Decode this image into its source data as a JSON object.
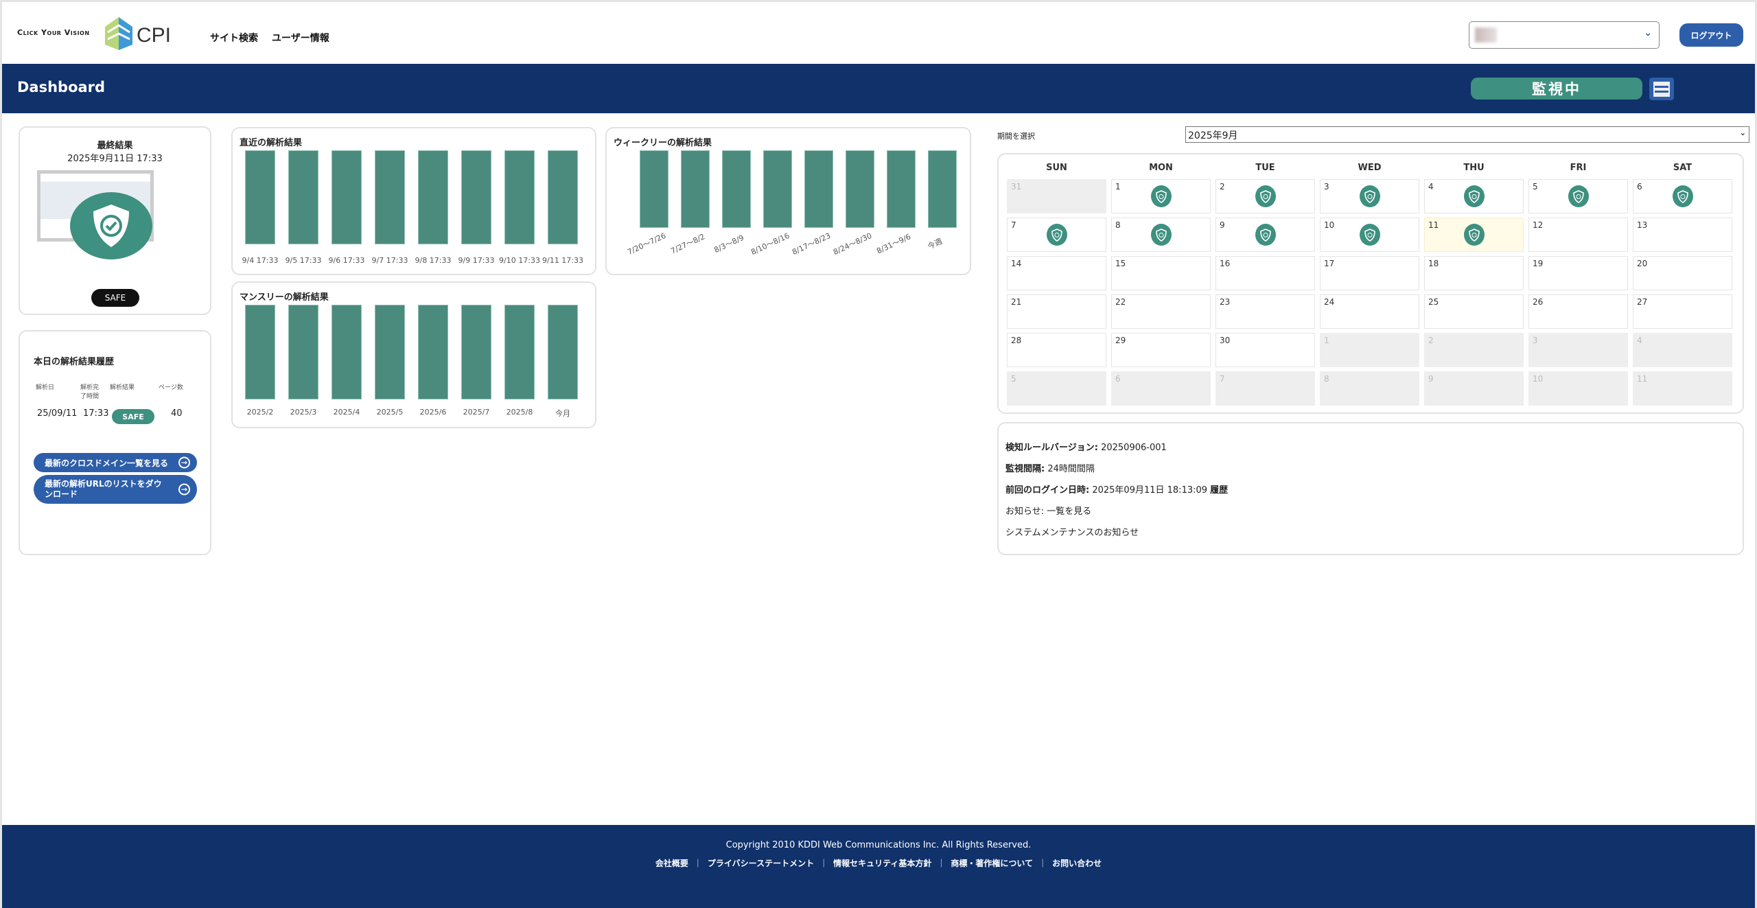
{
  "header": {
    "logo_tagline": "Click Your Vision",
    "logo_text": "CPI",
    "nav": [
      "サイト検索",
      "ユーザー情報"
    ],
    "site_select_value": "",
    "logout_label": "ログアウト"
  },
  "titlebar": {
    "title": "Dashboard",
    "monitor_status": "監視中",
    "menu_icon": "hamburger-icon"
  },
  "latest": {
    "title": "最終結果",
    "datetime": "2025年9月11日 17:33",
    "status": "SAFE",
    "icon": "shield-check-icon"
  },
  "history": {
    "title": "本日の解析結果履歴",
    "columns": [
      "解析日",
      "解析完了時間",
      "解析結果",
      "ページ数"
    ],
    "rows": [
      {
        "date": "25/09/11",
        "time": "17:33",
        "result": "SAFE",
        "pages": "40"
      }
    ],
    "buttons": [
      "最新のクロスドメイン一覧を見る",
      "最新の解析URLのリストをダウンロード"
    ]
  },
  "colors": {
    "navy": "#10316a",
    "accent_blue": "#2d5ea9",
    "safe_green": "#3e9080",
    "bar_green": "#4b8b7d"
  },
  "chart_data": [
    {
      "type": "bar",
      "title": "直近の解析結果",
      "categories": [
        "9/4 17:33",
        "9/5 17:33",
        "9/6 17:33",
        "9/7 17:33",
        "9/8 17:33",
        "9/9 17:33",
        "9/10 17:33",
        "9/11 17:33"
      ],
      "values": [
        1,
        1,
        1,
        1,
        1,
        1,
        1,
        1
      ],
      "ylim": [
        0,
        1
      ],
      "grid": false
    },
    {
      "type": "bar",
      "title": "ウィークリーの解析結果",
      "categories": [
        "7/20〜7/26",
        "7/27〜8/2",
        "8/3〜8/9",
        "8/10〜8/16",
        "8/17〜8/23",
        "8/24〜8/30",
        "8/31〜9/6",
        "今週"
      ],
      "values": [
        1,
        1,
        1,
        1,
        1,
        1,
        1,
        1
      ],
      "ylim": [
        0,
        1
      ],
      "grid": false
    },
    {
      "type": "bar",
      "title": "マンスリーの解析結果",
      "categories": [
        "2025/2",
        "2025/3",
        "2025/4",
        "2025/5",
        "2025/6",
        "2025/7",
        "2025/8",
        "今月"
      ],
      "values": [
        1,
        1,
        1,
        1,
        1,
        1,
        1,
        1
      ],
      "ylim": [
        0,
        1
      ],
      "grid": false
    }
  ],
  "calendar": {
    "period_label": "期間を選択",
    "period_value": "2025年9月",
    "days_of_week": [
      "SUN",
      "MON",
      "TUE",
      "WED",
      "THU",
      "FRI",
      "SAT"
    ],
    "weeks": [
      [
        [
          "31",
          0,
          0
        ],
        [
          "1",
          1,
          1
        ],
        [
          "2",
          1,
          1
        ],
        [
          "3",
          1,
          1
        ],
        [
          "4",
          1,
          1
        ],
        [
          "5",
          1,
          1
        ],
        [
          "6",
          1,
          1
        ]
      ],
      [
        [
          "7",
          1,
          1
        ],
        [
          "8",
          1,
          1
        ],
        [
          "9",
          1,
          1
        ],
        [
          "10",
          1,
          1
        ],
        [
          "11",
          1,
          1,
          "today"
        ],
        [
          "12",
          1,
          0
        ],
        [
          "13",
          1,
          0
        ]
      ],
      [
        [
          "14",
          1,
          0
        ],
        [
          "15",
          1,
          0
        ],
        [
          "16",
          1,
          0
        ],
        [
          "17",
          1,
          0
        ],
        [
          "18",
          1,
          0
        ],
        [
          "19",
          1,
          0
        ],
        [
          "20",
          1,
          0
        ]
      ],
      [
        [
          "21",
          1,
          0
        ],
        [
          "22",
          1,
          0
        ],
        [
          "23",
          1,
          0
        ],
        [
          "24",
          1,
          0
        ],
        [
          "25",
          1,
          0
        ],
        [
          "26",
          1,
          0
        ],
        [
          "27",
          1,
          0
        ]
      ],
      [
        [
          "28",
          1,
          0
        ],
        [
          "29",
          1,
          0
        ],
        [
          "30",
          1,
          0
        ],
        [
          "1",
          0,
          0
        ],
        [
          "2",
          0,
          0
        ],
        [
          "3",
          0,
          0
        ],
        [
          "4",
          0,
          0
        ]
      ],
      [
        [
          "5",
          0,
          0
        ],
        [
          "6",
          0,
          0
        ],
        [
          "7",
          0,
          0
        ],
        [
          "8",
          0,
          0
        ],
        [
          "9",
          0,
          0
        ],
        [
          "10",
          0,
          0
        ],
        [
          "11",
          0,
          0
        ]
      ]
    ]
  },
  "info": {
    "rule_label": "検知ルールバージョン:",
    "rule_value": "20250906-001",
    "interval_label": "監視間隔:",
    "interval_value": "24時間間隔",
    "login_label": "前回のログイン日時:",
    "login_value": "2025年09月11日 18:13:09",
    "login_history": "履歴",
    "notice_label": "お知らせ:",
    "notice_link": "一覧を見る",
    "notice_item": "システムメンテナンスのお知らせ"
  },
  "footer": {
    "copyright": "Copyright 2010 KDDI Web Communications Inc. All Rights Reserved.",
    "links": [
      "会社概要",
      "プライバシーステートメント",
      "情報セキュリティ基本方針",
      "商標・著作権について",
      "お問い合わせ"
    ]
  }
}
